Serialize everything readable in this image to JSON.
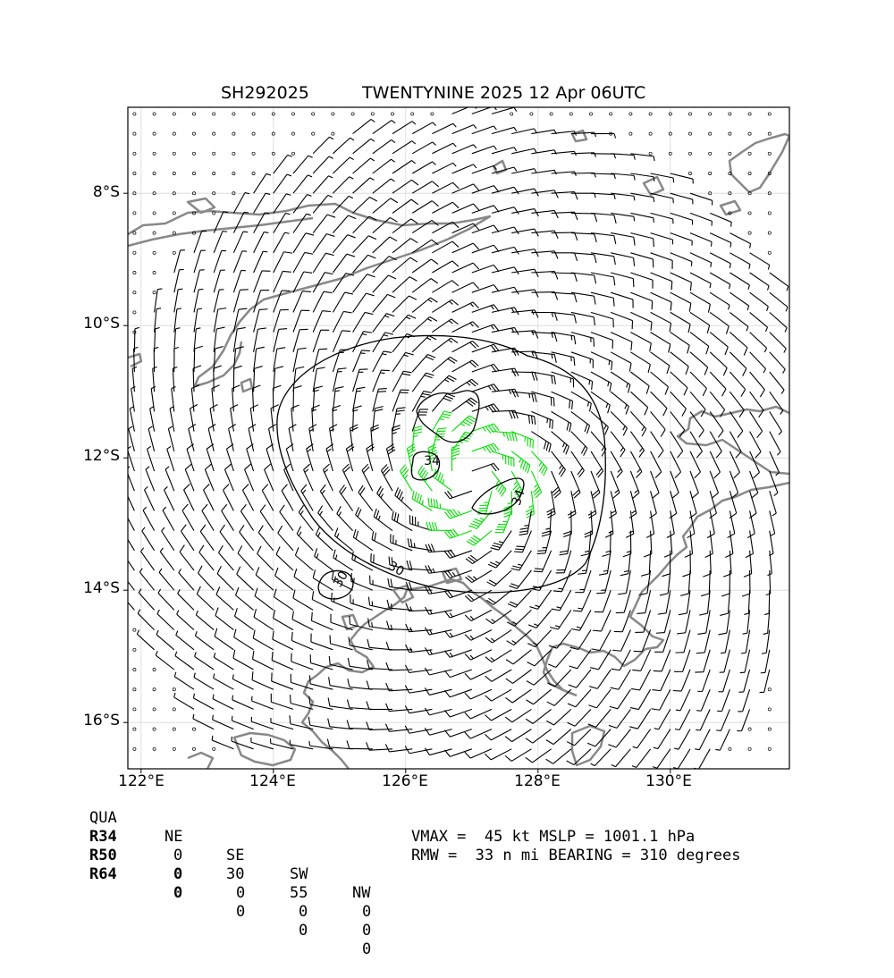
{
  "header": {
    "storm_id": "SH292025",
    "storm_title": "TWENTYNINE 2025 12 Apr 06UTC"
  },
  "axes": {
    "y_ticks": [
      "8°S",
      "10°S",
      "12°S",
      "14°S",
      "16°S"
    ],
    "x_ticks": [
      "122°E",
      "124°E",
      "126°E",
      "128°E",
      "130°E"
    ],
    "lon_range": [
      121.8,
      131.8
    ],
    "lat_range": [
      -16.7,
      -6.7
    ],
    "grid": true
  },
  "contours": {
    "labels": [
      "34",
      "34",
      "30",
      "30"
    ],
    "colors": {
      "calm": "#000000",
      "wind_34kt": "#00e000",
      "wind_50kt": "#e8a000",
      "coast": "#888888"
    }
  },
  "wind_radii": {
    "headers": [
      "QUA",
      "NE",
      "SE",
      "SW",
      "NW"
    ],
    "rows": [
      {
        "label": "R34",
        "values": [
          "0",
          "30",
          "55",
          "0"
        ]
      },
      {
        "label": "R50",
        "values": [
          "0",
          "0",
          "0",
          "0"
        ]
      },
      {
        "label": "R64",
        "values": [
          "0",
          "0",
          "0",
          "0"
        ]
      }
    ]
  },
  "stats": {
    "line1": "VMAX =  45 kt MSLP = 1001.1 hPa",
    "line2": "RMW =  33 n mi BEARING = 310 degrees"
  },
  "storm": {
    "center_lon": 127.0,
    "center_lat": -12.3,
    "vmax_kt": 45
  }
}
